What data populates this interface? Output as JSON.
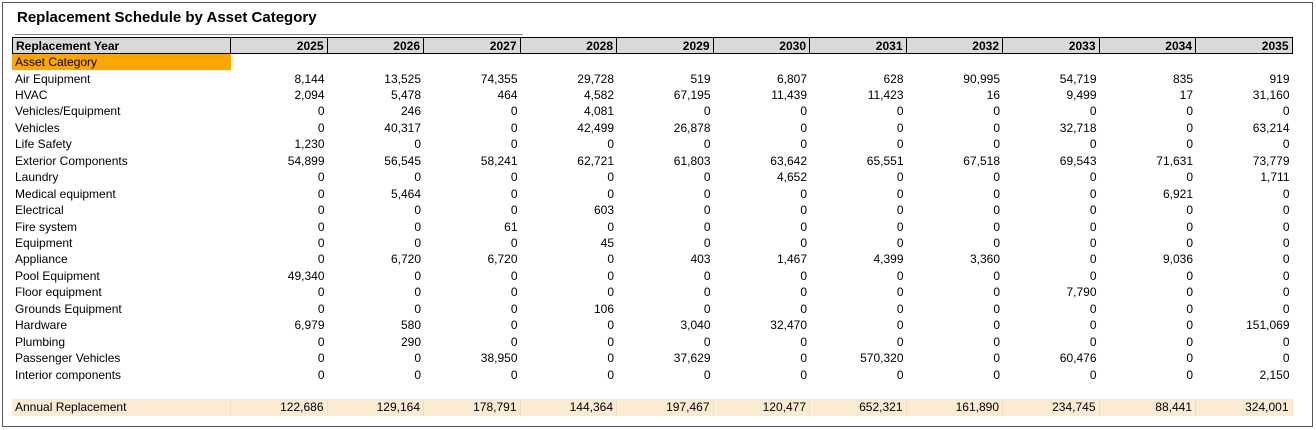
{
  "title": "Replacement Schedule by Asset Category",
  "table": {
    "header": [
      "Replacement Year",
      2025,
      2026,
      2027,
      2028,
      2029,
      2030,
      2031,
      2032,
      2033,
      2034,
      2035
    ],
    "group_label": "Asset Category",
    "rows": [
      [
        "Air Equipment",
        "8,144",
        "13,525",
        "74,355",
        "29,728",
        "519",
        "6,807",
        "628",
        "90,995",
        "54,719",
        "835",
        "919"
      ],
      [
        "HVAC",
        "2,094",
        "5,478",
        "464",
        "4,582",
        "67,195",
        "11,439",
        "11,423",
        "16",
        "9,499",
        "17",
        "31,160"
      ],
      [
        "Vehicles/Equipment",
        "0",
        "246",
        "0",
        "4,081",
        "0",
        "0",
        "0",
        "0",
        "0",
        "0",
        "0"
      ],
      [
        "Vehicles",
        "0",
        "40,317",
        "0",
        "42,499",
        "26,878",
        "0",
        "0",
        "0",
        "32,718",
        "0",
        "63,214"
      ],
      [
        "Life Safety",
        "1,230",
        "0",
        "0",
        "0",
        "0",
        "0",
        "0",
        "0",
        "0",
        "0",
        "0"
      ],
      [
        "Exterior Components",
        "54,899",
        "56,545",
        "58,241",
        "62,721",
        "61,803",
        "63,642",
        "65,551",
        "67,518",
        "69,543",
        "71,631",
        "73,779"
      ],
      [
        "Laundry",
        "0",
        "0",
        "0",
        "0",
        "0",
        "4,652",
        "0",
        "0",
        "0",
        "0",
        "1,711"
      ],
      [
        "Medical equipment",
        "0",
        "5,464",
        "0",
        "0",
        "0",
        "0",
        "0",
        "0",
        "0",
        "6,921",
        "0"
      ],
      [
        "Electrical",
        "0",
        "0",
        "0",
        "603",
        "0",
        "0",
        "0",
        "0",
        "0",
        "0",
        "0"
      ],
      [
        "Fire system",
        "0",
        "0",
        "61",
        "0",
        "0",
        "0",
        "0",
        "0",
        "0",
        "0",
        "0"
      ],
      [
        "Equipment",
        "0",
        "0",
        "0",
        "45",
        "0",
        "0",
        "0",
        "0",
        "0",
        "0",
        "0"
      ],
      [
        "Appliance",
        "0",
        "6,720",
        "6,720",
        "0",
        "403",
        "1,467",
        "4,399",
        "3,360",
        "0",
        "9,036",
        "0"
      ],
      [
        "Pool Equipment",
        "49,340",
        "0",
        "0",
        "0",
        "0",
        "0",
        "0",
        "0",
        "0",
        "0",
        "0"
      ],
      [
        "Floor equipment",
        "0",
        "0",
        "0",
        "0",
        "0",
        "0",
        "0",
        "0",
        "7,790",
        "0",
        "0"
      ],
      [
        "Grounds Equipment",
        "0",
        "0",
        "0",
        "106",
        "0",
        "0",
        "0",
        "0",
        "0",
        "0",
        "0"
      ],
      [
        "Hardware",
        "6,979",
        "580",
        "0",
        "0",
        "3,040",
        "32,470",
        "0",
        "0",
        "0",
        "0",
        "151,069"
      ],
      [
        "Plumbing",
        "0",
        "290",
        "0",
        "0",
        "0",
        "0",
        "0",
        "0",
        "0",
        "0",
        "0"
      ],
      [
        "Passenger Vehicles",
        "0",
        "0",
        "38,950",
        "0",
        "37,629",
        "0",
        "570,320",
        "0",
        "60,476",
        "0",
        "0"
      ],
      [
        "Interior components",
        "0",
        "0",
        "0",
        "0",
        "0",
        "0",
        "0",
        "0",
        "0",
        "0",
        "2,150"
      ]
    ],
    "total": [
      "Annual Replacement",
      "122,686",
      "129,164",
      "178,791",
      "144,364",
      "197,467",
      "120,477",
      "652,321",
      "161,890",
      "234,745",
      "88,441",
      "324,001"
    ]
  }
}
